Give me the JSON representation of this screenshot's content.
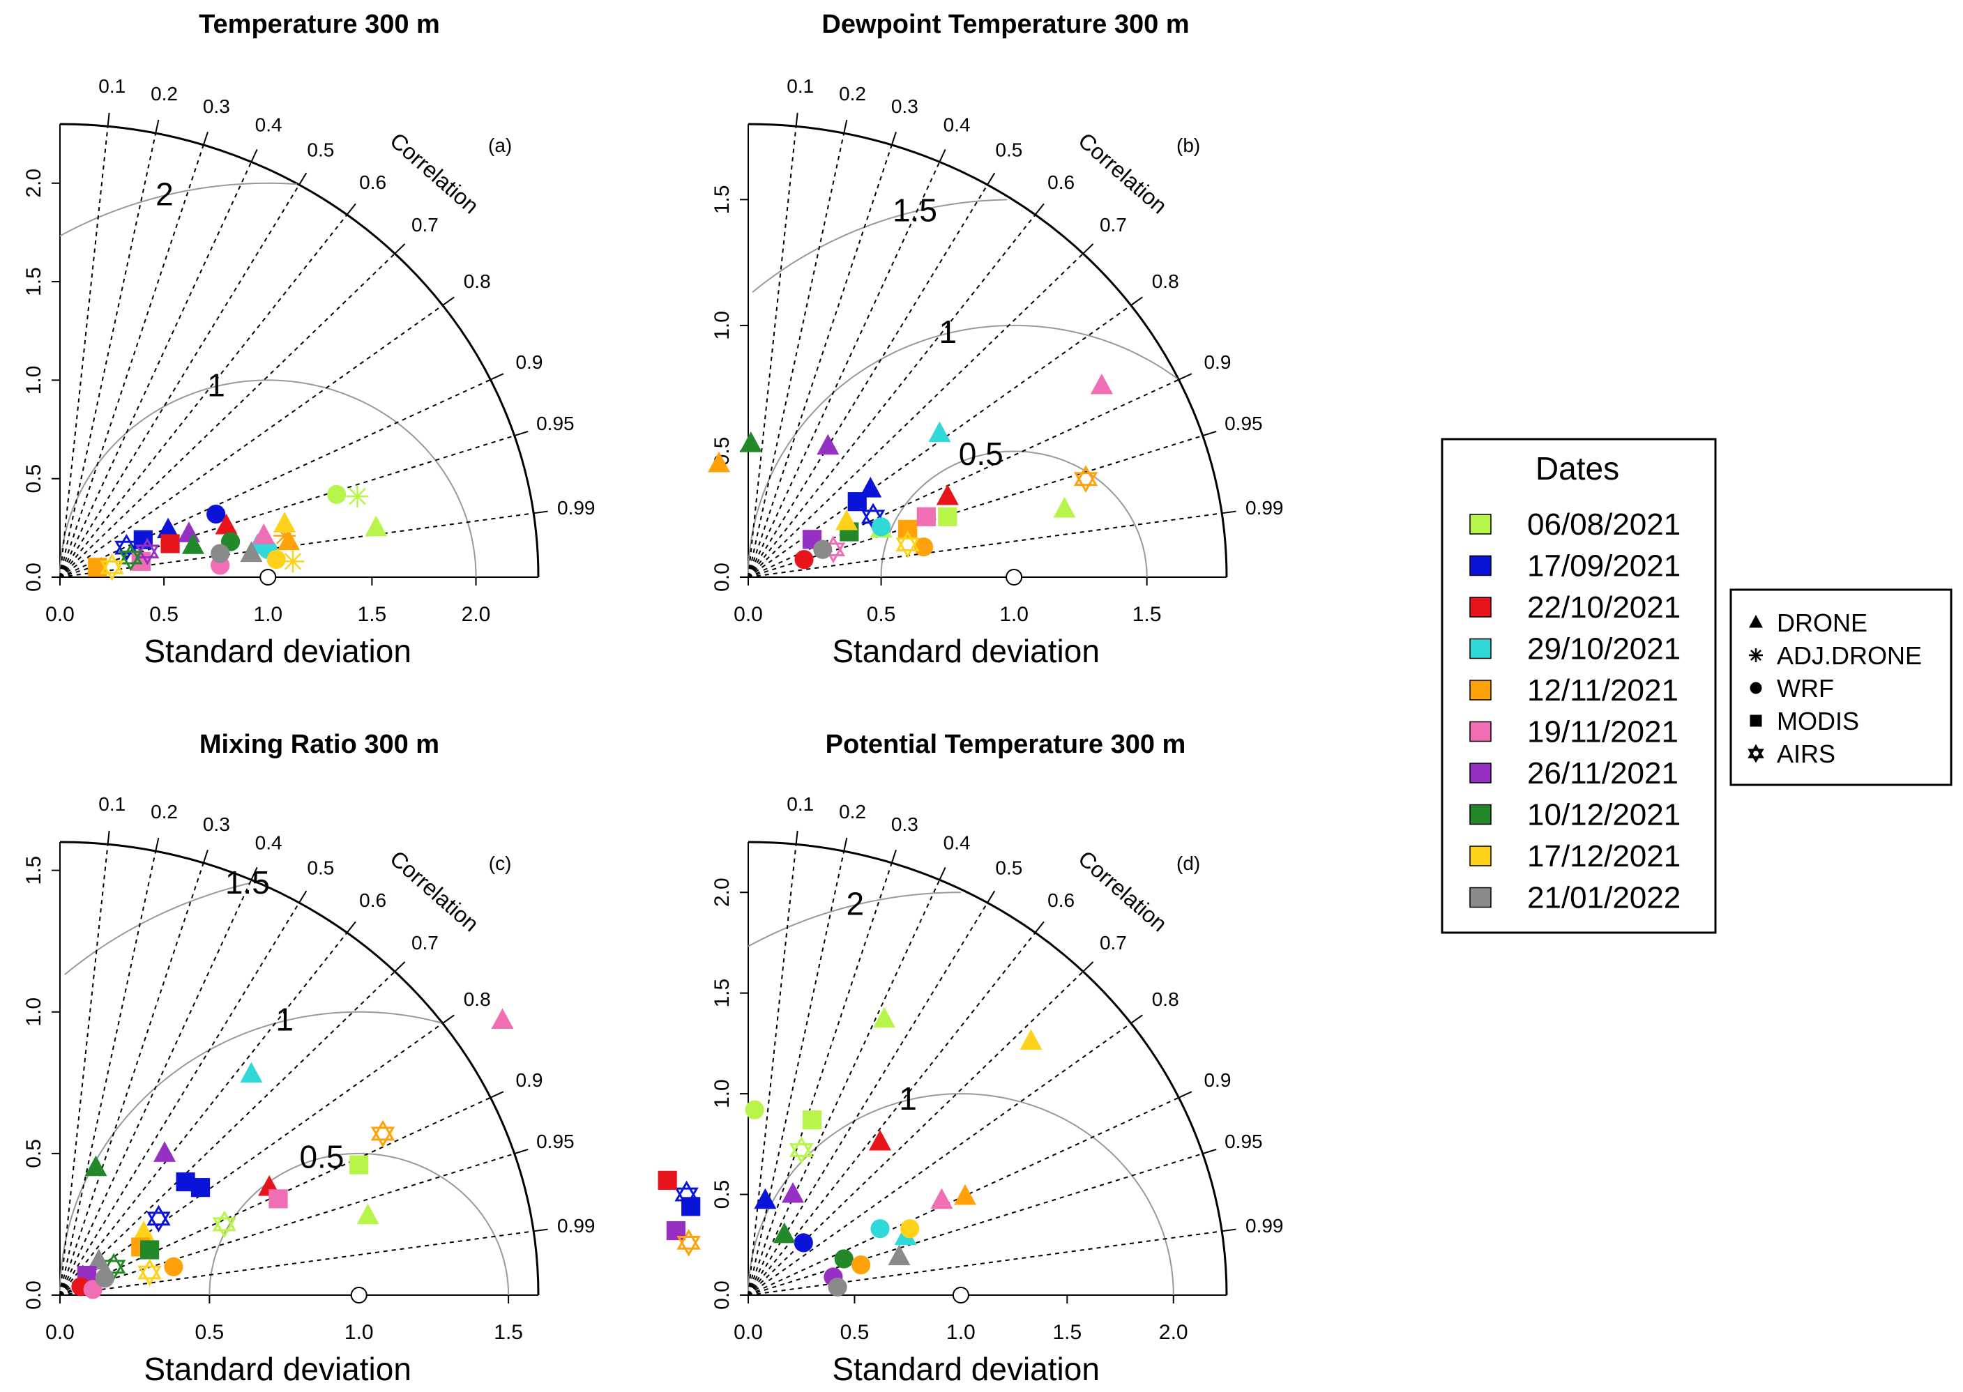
{
  "colors": {
    "06/08/2021": "#b8f54a",
    "17/09/2021": "#0a14d8",
    "22/10/2021": "#e8141c",
    "29/10/2021": "#30d8d8",
    "12/11/2021": "#ffa20a",
    "19/11/2021": "#f06eb4",
    "26/11/2021": "#9630c4",
    "10/12/2021": "#22882a",
    "17/12/2021": "#ffd21a",
    "21/01/2022": "#8a8a8a"
  },
  "legend": {
    "dates_title": "Dates",
    "dates": [
      "06/08/2021",
      "17/09/2021",
      "22/10/2021",
      "29/10/2021",
      "12/11/2021",
      "19/11/2021",
      "26/11/2021",
      "10/12/2021",
      "17/12/2021",
      "21/01/2022"
    ],
    "sources": [
      {
        "label": "DRONE",
        "icon": "triangle-icon"
      },
      {
        "label": "ADJ.DRONE",
        "icon": "asterisk-icon"
      },
      {
        "label": "WRF",
        "icon": "circle-icon"
      },
      {
        "label": "MODIS",
        "icon": "square-icon"
      },
      {
        "label": "AIRS",
        "icon": "star-of-david-icon"
      }
    ]
  },
  "chart_data": [
    {
      "type": "taylor",
      "panel": "(a)",
      "title": "Temperature 300 m",
      "xlabel": "Standard deviation",
      "corr_label": "Correlation",
      "max_sd": 2.3,
      "sd_ticks": [
        0.0,
        0.5,
        1.0,
        1.5,
        2.0
      ],
      "sd_tick_labels": [
        "0.0",
        "0.5",
        "1.0",
        "1.5",
        "2.0"
      ],
      "corr_ticks": [
        0.1,
        0.2,
        0.3,
        0.4,
        0.5,
        0.6,
        0.7,
        0.8,
        0.9,
        0.95,
        0.99
      ],
      "corr_tick_labels": [
        "0.1",
        "0.2",
        "0.3",
        "0.4",
        "0.5",
        "0.6",
        "0.7",
        "0.8",
        "0.9",
        "0.95",
        "0.99"
      ],
      "rms_contours": [
        1,
        2
      ],
      "rms_labels": [
        "1",
        "2"
      ],
      "points": [
        {
          "marker": "circle",
          "date": "06/08/2021",
          "x": 1.33,
          "y": 0.42
        },
        {
          "marker": "asterisk",
          "date": "06/08/2021",
          "x": 1.43,
          "y": 0.41
        },
        {
          "marker": "triangle",
          "date": "06/08/2021",
          "x": 1.52,
          "y": 0.25
        },
        {
          "marker": "circle",
          "date": "17/09/2021",
          "x": 0.75,
          "y": 0.32
        },
        {
          "marker": "square",
          "date": "17/09/2021",
          "x": 0.4,
          "y": 0.19
        },
        {
          "marker": "triangle",
          "date": "17/09/2021",
          "x": 0.52,
          "y": 0.24
        },
        {
          "marker": "star",
          "date": "17/09/2021",
          "x": 0.32,
          "y": 0.15
        },
        {
          "marker": "square",
          "date": "22/10/2021",
          "x": 0.53,
          "y": 0.17
        },
        {
          "marker": "triangle",
          "date": "22/10/2021",
          "x": 0.8,
          "y": 0.26
        },
        {
          "marker": "triangle",
          "date": "29/10/2021",
          "x": 0.95,
          "y": 0.16
        },
        {
          "marker": "circle",
          "date": "29/10/2021",
          "x": 1.0,
          "y": 0.14
        },
        {
          "marker": "square",
          "date": "12/11/2021",
          "x": 0.18,
          "y": 0.05
        },
        {
          "marker": "triangle",
          "date": "12/11/2021",
          "x": 1.1,
          "y": 0.18
        },
        {
          "marker": "asterisk",
          "date": "12/11/2021",
          "x": 1.08,
          "y": 0.21
        },
        {
          "marker": "square",
          "date": "19/11/2021",
          "x": 0.39,
          "y": 0.08
        },
        {
          "marker": "circle",
          "date": "19/11/2021",
          "x": 0.77,
          "y": 0.06
        },
        {
          "marker": "triangle",
          "date": "19/11/2021",
          "x": 0.98,
          "y": 0.21
        },
        {
          "marker": "triangle",
          "date": "26/11/2021",
          "x": 0.62,
          "y": 0.22
        },
        {
          "marker": "star",
          "date": "26/11/2021",
          "x": 0.42,
          "y": 0.13
        },
        {
          "marker": "triangle",
          "date": "10/12/2021",
          "x": 0.64,
          "y": 0.16
        },
        {
          "marker": "circle",
          "date": "10/12/2021",
          "x": 0.82,
          "y": 0.18
        },
        {
          "marker": "star",
          "date": "10/12/2021",
          "x": 0.34,
          "y": 0.1
        },
        {
          "marker": "triangle",
          "date": "17/12/2021",
          "x": 1.08,
          "y": 0.27
        },
        {
          "marker": "circle",
          "date": "17/12/2021",
          "x": 1.04,
          "y": 0.09
        },
        {
          "marker": "asterisk",
          "date": "17/12/2021",
          "x": 1.12,
          "y": 0.08
        },
        {
          "marker": "star",
          "date": "17/12/2021",
          "x": 0.25,
          "y": 0.05
        },
        {
          "marker": "circle",
          "date": "21/01/2022",
          "x": 0.77,
          "y": 0.12
        },
        {
          "marker": "triangle",
          "date": "21/01/2022",
          "x": 0.92,
          "y": 0.12
        }
      ]
    },
    {
      "type": "taylor",
      "panel": "(b)",
      "title": "Dewpoint Temperature 300 m",
      "xlabel": "Standard deviation",
      "corr_label": "Correlation",
      "max_sd": 1.8,
      "sd_ticks": [
        0.0,
        0.5,
        1.0,
        1.5
      ],
      "sd_tick_labels": [
        "0.0",
        "0.5",
        "1.0",
        "1.5"
      ],
      "corr_ticks": [
        0.1,
        0.2,
        0.3,
        0.4,
        0.5,
        0.6,
        0.7,
        0.8,
        0.9,
        0.95,
        0.99
      ],
      "corr_tick_labels": [
        "0.1",
        "0.2",
        "0.3",
        "0.4",
        "0.5",
        "0.6",
        "0.7",
        "0.8",
        "0.9",
        "0.95",
        "0.99"
      ],
      "rms_contours": [
        0.5,
        1,
        1.5
      ],
      "rms_labels": [
        "0.5",
        "1",
        "1.5"
      ],
      "points": [
        {
          "marker": "triangle",
          "date": "06/08/2021",
          "x": 1.19,
          "y": 0.27
        },
        {
          "marker": "square",
          "date": "06/08/2021",
          "x": 0.75,
          "y": 0.24
        },
        {
          "marker": "triangle",
          "date": "06/08/2021",
          "x": 0.5,
          "y": 0.19
        },
        {
          "marker": "triangle",
          "date": "17/09/2021",
          "x": 0.46,
          "y": 0.35
        },
        {
          "marker": "square",
          "date": "17/09/2021",
          "x": 0.41,
          "y": 0.3
        },
        {
          "marker": "star",
          "date": "17/09/2021",
          "x": 0.47,
          "y": 0.24
        },
        {
          "marker": "triangle",
          "date": "22/10/2021",
          "x": 0.75,
          "y": 0.32
        },
        {
          "marker": "circle",
          "date": "22/10/2021",
          "x": 0.21,
          "y": 0.07
        },
        {
          "marker": "triangle",
          "date": "29/10/2021",
          "x": 0.72,
          "y": 0.57
        },
        {
          "marker": "circle",
          "date": "29/10/2021",
          "x": 0.5,
          "y": 0.2
        },
        {
          "marker": "triangle",
          "date": "12/11/2021",
          "x": -0.11,
          "y": 0.45
        },
        {
          "marker": "circle",
          "date": "12/11/2021",
          "x": 0.66,
          "y": 0.12
        },
        {
          "marker": "square",
          "date": "12/11/2021",
          "x": 0.6,
          "y": 0.19
        },
        {
          "marker": "star",
          "date": "12/11/2021",
          "x": 1.27,
          "y": 0.39
        },
        {
          "marker": "triangle",
          "date": "19/11/2021",
          "x": 1.33,
          "y": 0.76
        },
        {
          "marker": "square",
          "date": "19/11/2021",
          "x": 0.67,
          "y": 0.24
        },
        {
          "marker": "star",
          "date": "19/11/2021",
          "x": 0.32,
          "y": 0.11
        },
        {
          "marker": "triangle",
          "date": "26/11/2021",
          "x": 0.3,
          "y": 0.52
        },
        {
          "marker": "square",
          "date": "26/11/2021",
          "x": 0.24,
          "y": 0.15
        },
        {
          "marker": "triangle",
          "date": "10/12/2021",
          "x": 0.01,
          "y": 0.53
        },
        {
          "marker": "square",
          "date": "10/12/2021",
          "x": 0.38,
          "y": 0.18
        },
        {
          "marker": "triangle",
          "date": "17/12/2021",
          "x": 0.37,
          "y": 0.22
        },
        {
          "marker": "star",
          "date": "17/12/2021",
          "x": 0.6,
          "y": 0.13
        },
        {
          "marker": "circle",
          "date": "21/01/2022",
          "x": 0.28,
          "y": 0.11
        }
      ]
    },
    {
      "type": "taylor",
      "panel": "(c)",
      "title": "Mixing Ratio 300 m",
      "xlabel": "Standard deviation",
      "corr_label": "Correlation",
      "max_sd": 1.6,
      "sd_ticks": [
        0.0,
        0.5,
        1.0,
        1.5
      ],
      "sd_tick_labels": [
        "0.0",
        "0.5",
        "1.0",
        "1.5"
      ],
      "corr_ticks": [
        0.1,
        0.2,
        0.3,
        0.4,
        0.5,
        0.6,
        0.7,
        0.8,
        0.9,
        0.95,
        0.99
      ],
      "corr_tick_labels": [
        "0.1",
        "0.2",
        "0.3",
        "0.4",
        "0.5",
        "0.6",
        "0.7",
        "0.8",
        "0.9",
        "0.95",
        "0.99"
      ],
      "rms_contours": [
        0.5,
        1,
        1.5
      ],
      "rms_labels": [
        "0.5",
        "1",
        "1.5"
      ],
      "points": [
        {
          "marker": "triangle",
          "date": "19/11/2021",
          "x": 1.48,
          "y": 0.97
        },
        {
          "marker": "triangle",
          "date": "29/10/2021",
          "x": 0.64,
          "y": 0.78
        },
        {
          "marker": "triangle",
          "date": "26/11/2021",
          "x": 0.35,
          "y": 0.5
        },
        {
          "marker": "triangle",
          "date": "10/12/2021",
          "x": 0.12,
          "y": 0.45
        },
        {
          "marker": "square",
          "date": "17/09/2021",
          "x": 0.42,
          "y": 0.4
        },
        {
          "marker": "square",
          "date": "17/09/2021",
          "x": 0.47,
          "y": 0.38
        },
        {
          "marker": "triangle",
          "date": "22/10/2021",
          "x": 0.7,
          "y": 0.38
        },
        {
          "marker": "square",
          "date": "19/11/2021",
          "x": 0.73,
          "y": 0.34
        },
        {
          "marker": "square",
          "date": "06/08/2021",
          "x": 1.0,
          "y": 0.46
        },
        {
          "marker": "triangle",
          "date": "06/08/2021",
          "x": 1.03,
          "y": 0.28
        },
        {
          "marker": "star",
          "date": "12/11/2021",
          "x": 1.08,
          "y": 0.57
        },
        {
          "marker": "star",
          "date": "06/08/2021",
          "x": 0.55,
          "y": 0.25
        },
        {
          "marker": "star",
          "date": "17/09/2021",
          "x": 0.33,
          "y": 0.27
        },
        {
          "marker": "triangle",
          "date": "17/12/2021",
          "x": 0.28,
          "y": 0.22
        },
        {
          "marker": "square",
          "date": "12/11/2021",
          "x": 0.27,
          "y": 0.17
        },
        {
          "marker": "square",
          "date": "10/12/2021",
          "x": 0.3,
          "y": 0.16
        },
        {
          "marker": "circle",
          "date": "12/11/2021",
          "x": 0.38,
          "y": 0.1
        },
        {
          "marker": "star",
          "date": "17/12/2021",
          "x": 0.3,
          "y": 0.08
        },
        {
          "marker": "star",
          "date": "10/12/2021",
          "x": 0.18,
          "y": 0.1
        },
        {
          "marker": "triangle",
          "date": "21/01/2022",
          "x": 0.13,
          "y": 0.12
        },
        {
          "marker": "square",
          "date": "26/11/2021",
          "x": 0.09,
          "y": 0.07
        },
        {
          "marker": "circle",
          "date": "22/10/2021",
          "x": 0.07,
          "y": 0.03
        },
        {
          "marker": "circle",
          "date": "19/11/2021",
          "x": 0.11,
          "y": 0.02
        },
        {
          "marker": "circle",
          "date": "21/01/2022",
          "x": 0.15,
          "y": 0.06
        }
      ]
    },
    {
      "type": "taylor",
      "panel": "(d)",
      "title": "Potential Temperature 300 m",
      "xlabel": "Standard deviation",
      "corr_label": "Correlation",
      "max_sd": 2.25,
      "sd_ticks": [
        0.0,
        0.5,
        1.0,
        1.5,
        2.0
      ],
      "sd_tick_labels": [
        "0.0",
        "0.5",
        "1.0",
        "1.5",
        "2.0"
      ],
      "corr_ticks": [
        0.1,
        0.2,
        0.3,
        0.4,
        0.5,
        0.6,
        0.7,
        0.8,
        0.9,
        0.95,
        0.99
      ],
      "corr_tick_labels": [
        "0.1",
        "0.2",
        "0.3",
        "0.4",
        "0.5",
        "0.6",
        "0.7",
        "0.8",
        "0.9",
        "0.95",
        "0.99"
      ],
      "rms_contours": [
        1,
        2
      ],
      "rms_labels": [
        "1",
        "2"
      ],
      "points": [
        {
          "marker": "triangle",
          "date": "06/08/2021",
          "x": 0.64,
          "y": 1.37
        },
        {
          "marker": "triangle",
          "date": "17/12/2021",
          "x": 1.33,
          "y": 1.26
        },
        {
          "marker": "circle",
          "date": "06/08/2021",
          "x": 0.03,
          "y": 0.92
        },
        {
          "marker": "square",
          "date": "06/08/2021",
          "x": 0.3,
          "y": 0.87
        },
        {
          "marker": "triangle",
          "date": "22/10/2021",
          "x": 0.62,
          "y": 0.76
        },
        {
          "marker": "star",
          "date": "06/08/2021",
          "x": 0.25,
          "y": 0.72
        },
        {
          "marker": "triangle",
          "date": "12/11/2021",
          "x": 1.02,
          "y": 0.49
        },
        {
          "marker": "triangle",
          "date": "19/11/2021",
          "x": 0.91,
          "y": 0.47
        },
        {
          "marker": "triangle",
          "date": "26/11/2021",
          "x": 0.21,
          "y": 0.5
        },
        {
          "marker": "triangle",
          "date": "17/09/2021",
          "x": 0.08,
          "y": 0.47
        },
        {
          "marker": "star",
          "date": "17/09/2021",
          "x": -0.29,
          "y": 0.5
        },
        {
          "marker": "square",
          "date": "17/09/2021",
          "x": -0.27,
          "y": 0.44
        },
        {
          "marker": "square",
          "date": "22/10/2021",
          "x": -0.38,
          "y": 0.57
        },
        {
          "marker": "square",
          "date": "26/11/2021",
          "x": -0.34,
          "y": 0.32
        },
        {
          "marker": "star",
          "date": "12/11/2021",
          "x": -0.28,
          "y": 0.26
        },
        {
          "marker": "circle",
          "date": "17/09/2021",
          "x": 0.26,
          "y": 0.26
        },
        {
          "marker": "triangle",
          "date": "10/12/2021",
          "x": 0.17,
          "y": 0.3
        },
        {
          "marker": "circle",
          "date": "29/10/2021",
          "x": 0.62,
          "y": 0.33
        },
        {
          "marker": "triangle",
          "date": "29/10/2021",
          "x": 0.74,
          "y": 0.29
        },
        {
          "marker": "circle",
          "date": "17/12/2021",
          "x": 0.76,
          "y": 0.33
        },
        {
          "marker": "triangle",
          "date": "21/01/2022",
          "x": 0.71,
          "y": 0.19
        },
        {
          "marker": "circle",
          "date": "10/12/2021",
          "x": 0.45,
          "y": 0.18
        },
        {
          "marker": "circle",
          "date": "12/11/2021",
          "x": 0.53,
          "y": 0.15
        },
        {
          "marker": "circle",
          "date": "26/11/2021",
          "x": 0.4,
          "y": 0.09
        },
        {
          "marker": "circle",
          "date": "21/01/2022",
          "x": 0.42,
          "y": 0.04
        }
      ]
    }
  ]
}
